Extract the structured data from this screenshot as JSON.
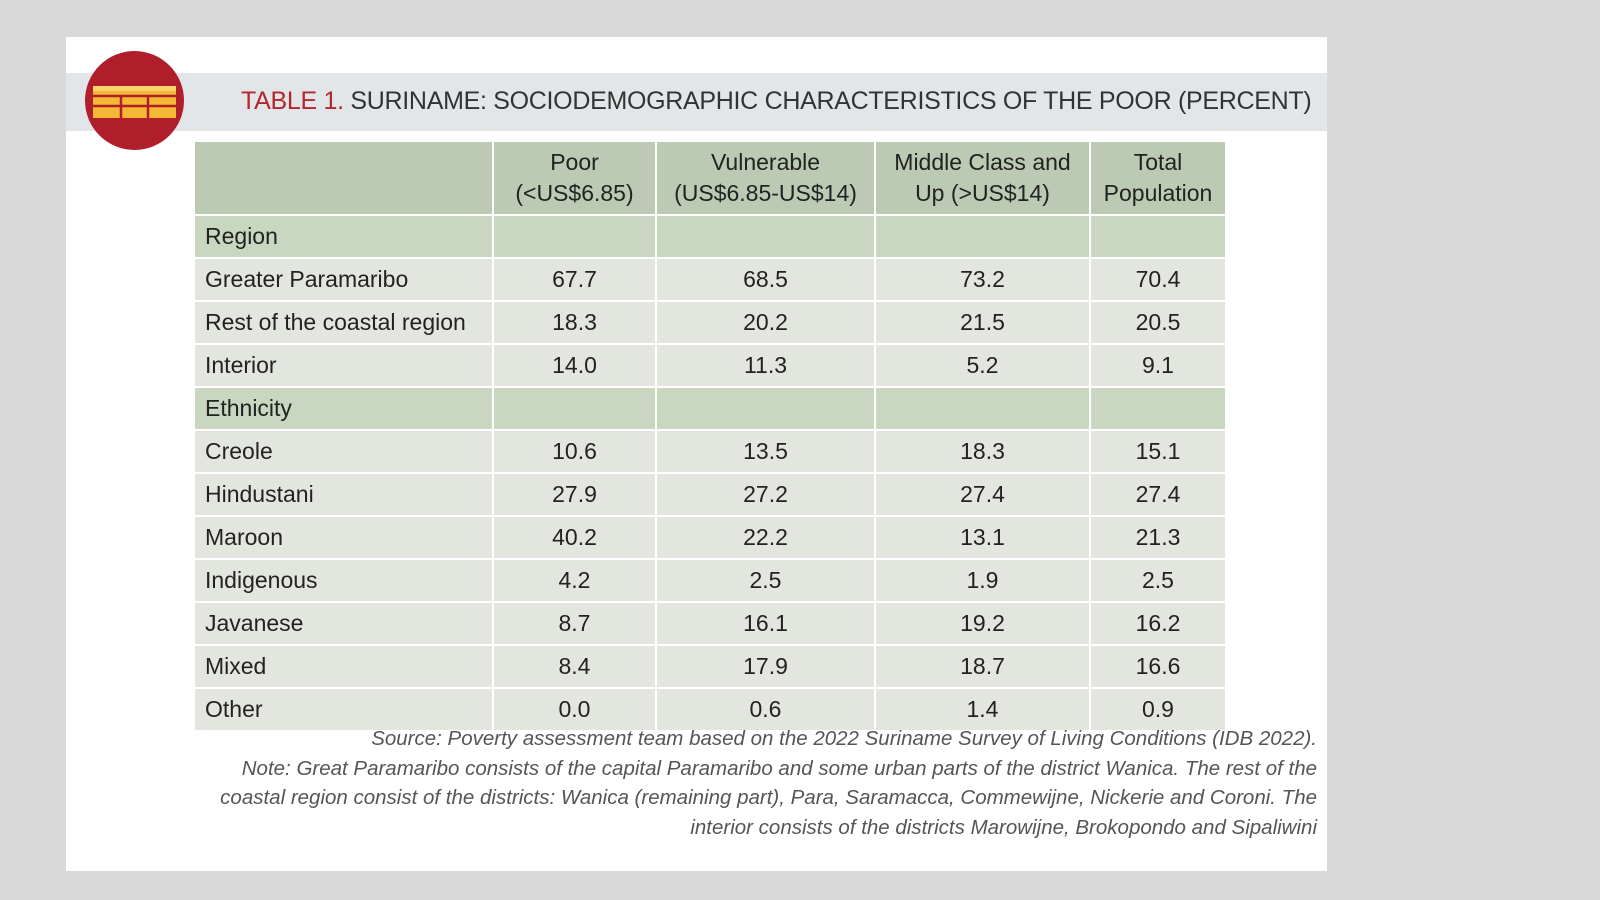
{
  "title": {
    "prefix": "TABLE 1.",
    "text": "SURINAME: SOCIODEMOGRAPHIC CHARACTERISTICS OF THE POOR (PERCENT)"
  },
  "icon": "table-icon",
  "colors": {
    "accent_red": "#b11e2b",
    "icon_yellow": "#f3b934",
    "header_green": "#bccab3",
    "group_green": "#c9d6c0",
    "row_gray": "#e3e6df",
    "title_band": "#e3e6e8"
  },
  "table": {
    "headers": [
      [
        "",
        ""
      ],
      [
        "Poor",
        "(<US$6.85)"
      ],
      [
        "Vulnerable",
        "(US$6.85-US$14)"
      ],
      [
        "Middle Class and",
        "Up (>US$14)"
      ],
      [
        "Total",
        "Population"
      ]
    ],
    "rows": [
      {
        "type": "group",
        "cells": [
          "Region",
          "",
          "",
          "",
          ""
        ]
      },
      {
        "type": "row",
        "cells": [
          "Greater Paramaribo",
          "67.7",
          "68.5",
          "73.2",
          "70.4"
        ]
      },
      {
        "type": "row",
        "cells": [
          "Rest of the coastal region",
          "18.3",
          "20.2",
          "21.5",
          "20.5"
        ]
      },
      {
        "type": "row",
        "cells": [
          "Interior",
          "14.0",
          "11.3",
          "5.2",
          "9.1"
        ]
      },
      {
        "type": "group",
        "cells": [
          "Ethnicity",
          "",
          "",
          "",
          ""
        ]
      },
      {
        "type": "row",
        "cells": [
          "Creole",
          "10.6",
          "13.5",
          "18.3",
          "15.1"
        ]
      },
      {
        "type": "row",
        "cells": [
          "Hindustani",
          "27.9",
          "27.2",
          "27.4",
          "27.4"
        ]
      },
      {
        "type": "row",
        "cells": [
          "Maroon",
          "40.2",
          "22.2",
          "13.1",
          "21.3"
        ]
      },
      {
        "type": "row",
        "cells": [
          "Indigenous",
          "4.2",
          "2.5",
          "1.9",
          "2.5"
        ]
      },
      {
        "type": "row",
        "cells": [
          "Javanese",
          "8.7",
          "16.1",
          "19.2",
          "16.2"
        ]
      },
      {
        "type": "row",
        "cells": [
          "Mixed",
          "8.4",
          "17.9",
          "18.7",
          "16.6"
        ]
      },
      {
        "type": "row",
        "cells": [
          "Other",
          "0.0",
          "0.6",
          "1.4",
          "0.9"
        ]
      }
    ]
  },
  "notes": [
    "Source: Poverty assessment team based on the 2022 Suriname Survey of Living Conditions (IDB 2022).",
    "Note: Great Paramaribo consists of the capital Paramaribo and some urban parts of the district Wanica. The rest of the",
    "coastal region consist of the districts: Wanica (remaining part), Para, Saramacca, Commewijne, Nickerie and Coroni. The",
    "interior consists of the districts Marowijne, Brokopondo and Sipaliwini"
  ]
}
